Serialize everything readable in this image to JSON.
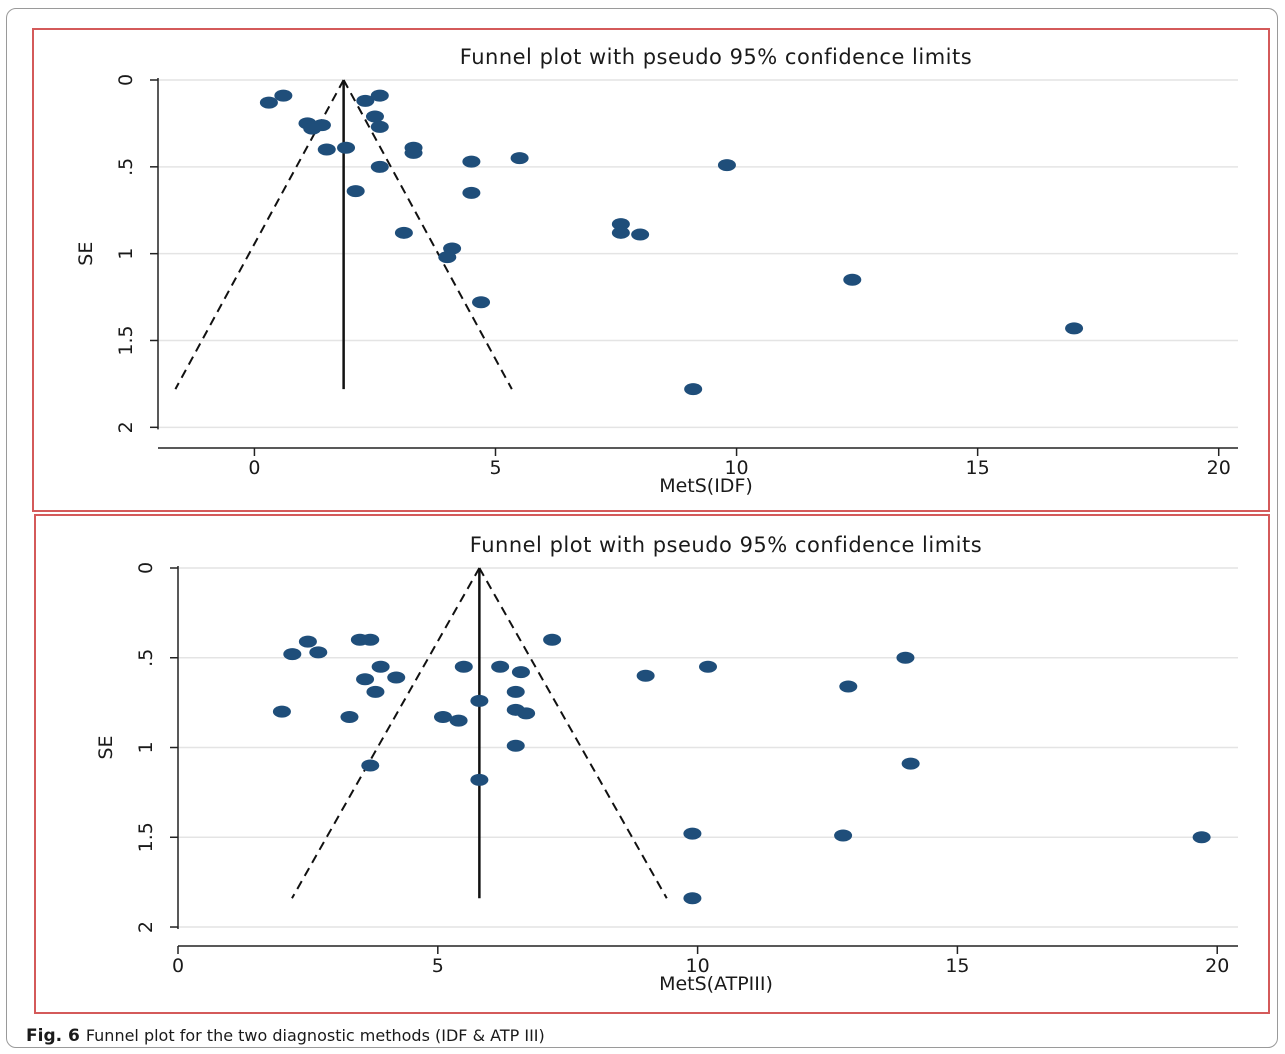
{
  "caption": {
    "label": "Fig. 6",
    "text": "Funnel plot for the two diagnostic methods (IDF & ATP III)"
  },
  "colors": {
    "point": "#1f4e7a",
    "frame": "#d45a5a",
    "grid": "#e4e4e4",
    "line": "#111111"
  },
  "chart_data": [
    {
      "type": "scatter",
      "title": "Funnel plot with pseudo 95% confidence limits",
      "xlabel": "MetS(IDF)",
      "ylabel": "SE",
      "xlim": [
        -2,
        20.4
      ],
      "ylim": [
        0,
        2.05
      ],
      "y_reversed": true,
      "xticks": [
        0,
        5,
        10,
        15,
        20
      ],
      "yticks": [
        0,
        0.5,
        1,
        1.5,
        2
      ],
      "ytick_labels": [
        "0",
        ".5",
        "1",
        "1.5",
        "2"
      ],
      "pooled_estimate": 1.85,
      "funnel_max_se": 1.78,
      "grid": true,
      "points": [
        {
          "x": 0.3,
          "y": 0.13
        },
        {
          "x": 0.6,
          "y": 0.09
        },
        {
          "x": 2.3,
          "y": 0.12
        },
        {
          "x": 2.6,
          "y": 0.09
        },
        {
          "x": 2.5,
          "y": 0.21
        },
        {
          "x": 2.6,
          "y": 0.27
        },
        {
          "x": 1.1,
          "y": 0.25
        },
        {
          "x": 1.4,
          "y": 0.26
        },
        {
          "x": 1.2,
          "y": 0.28
        },
        {
          "x": 1.5,
          "y": 0.4
        },
        {
          "x": 1.9,
          "y": 0.39
        },
        {
          "x": 3.3,
          "y": 0.39
        },
        {
          "x": 3.3,
          "y": 0.42
        },
        {
          "x": 4.5,
          "y": 0.47
        },
        {
          "x": 5.5,
          "y": 0.45
        },
        {
          "x": 9.8,
          "y": 0.49
        },
        {
          "x": 2.6,
          "y": 0.5
        },
        {
          "x": 2.1,
          "y": 0.64
        },
        {
          "x": 4.5,
          "y": 0.65
        },
        {
          "x": 7.6,
          "y": 0.83
        },
        {
          "x": 7.6,
          "y": 0.88
        },
        {
          "x": 8.0,
          "y": 0.89
        },
        {
          "x": 3.1,
          "y": 0.88
        },
        {
          "x": 4.1,
          "y": 0.97
        },
        {
          "x": 4.0,
          "y": 1.02
        },
        {
          "x": 12.4,
          "y": 1.15
        },
        {
          "x": 4.7,
          "y": 1.28
        },
        {
          "x": 17.0,
          "y": 1.43
        },
        {
          "x": 9.1,
          "y": 1.78
        }
      ]
    },
    {
      "type": "scatter",
      "title": "Funnel plot with pseudo 95% confidence limits",
      "xlabel": "MetS(ATPIII)",
      "ylabel": "SE",
      "xlim": [
        0,
        20.4
      ],
      "ylim": [
        0,
        2.05
      ],
      "y_reversed": true,
      "xticks": [
        0,
        5,
        10,
        15,
        20
      ],
      "yticks": [
        0,
        0.5,
        1,
        1.5,
        2
      ],
      "ytick_labels": [
        "0",
        ".5",
        "1",
        "1.5",
        "2"
      ],
      "pooled_estimate": 5.8,
      "funnel_max_se": 1.84,
      "grid": true,
      "points": [
        {
          "x": 2.5,
          "y": 0.41
        },
        {
          "x": 2.2,
          "y": 0.48
        },
        {
          "x": 2.7,
          "y": 0.47
        },
        {
          "x": 3.5,
          "y": 0.4
        },
        {
          "x": 3.7,
          "y": 0.4
        },
        {
          "x": 7.2,
          "y": 0.4
        },
        {
          "x": 3.9,
          "y": 0.55
        },
        {
          "x": 5.5,
          "y": 0.55
        },
        {
          "x": 6.2,
          "y": 0.55
        },
        {
          "x": 6.6,
          "y": 0.58
        },
        {
          "x": 10.2,
          "y": 0.55
        },
        {
          "x": 14.0,
          "y": 0.5
        },
        {
          "x": 3.6,
          "y": 0.62
        },
        {
          "x": 4.2,
          "y": 0.61
        },
        {
          "x": 9.0,
          "y": 0.6
        },
        {
          "x": 3.8,
          "y": 0.69
        },
        {
          "x": 6.5,
          "y": 0.69
        },
        {
          "x": 12.9,
          "y": 0.66
        },
        {
          "x": 5.8,
          "y": 0.74
        },
        {
          "x": 6.5,
          "y": 0.79
        },
        {
          "x": 6.7,
          "y": 0.81
        },
        {
          "x": 2.0,
          "y": 0.8
        },
        {
          "x": 3.3,
          "y": 0.83
        },
        {
          "x": 5.1,
          "y": 0.83
        },
        {
          "x": 5.4,
          "y": 0.85
        },
        {
          "x": 6.5,
          "y": 0.99
        },
        {
          "x": 3.7,
          "y": 1.1
        },
        {
          "x": 14.1,
          "y": 1.09
        },
        {
          "x": 5.8,
          "y": 1.18
        },
        {
          "x": 9.9,
          "y": 1.48
        },
        {
          "x": 12.8,
          "y": 1.49
        },
        {
          "x": 19.7,
          "y": 1.5
        },
        {
          "x": 9.9,
          "y": 1.84
        }
      ]
    }
  ]
}
